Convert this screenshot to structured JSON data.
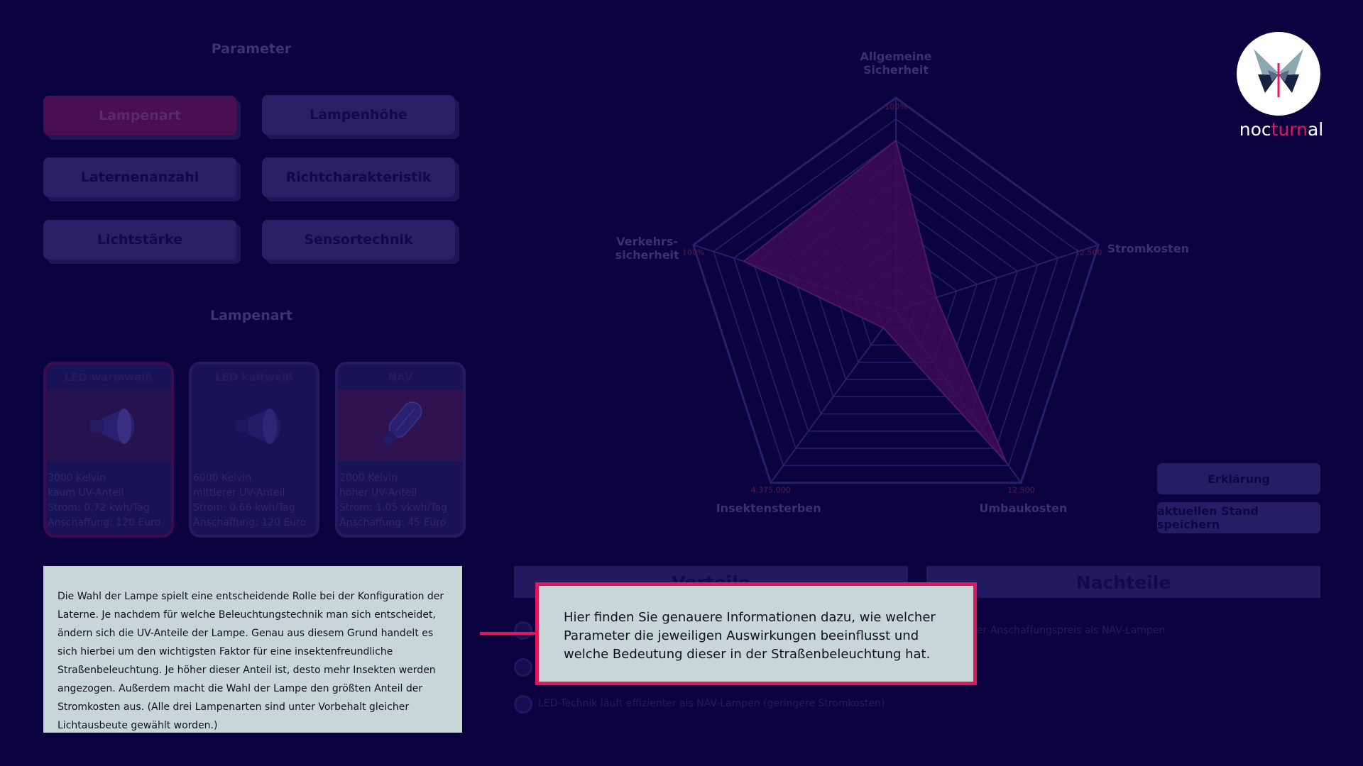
{
  "parameter": {
    "title": "Parameter",
    "buttons": [
      "Lampenart",
      "Lampenhöhe",
      "Laternenanzahl",
      "Richtcharakteristik",
      "Lichtstärke",
      "Sensortechnik"
    ]
  },
  "lampenart": {
    "title": "Lampenart",
    "cards": [
      {
        "title": "LED warmweiß",
        "lines": [
          "3000 Kelvin",
          "kaum UV-Anteil",
          "Strom: 0,72 kwh/Tag",
          "Anschaffung: 120 Euro"
        ]
      },
      {
        "title": "LED kaltweiß",
        "lines": [
          "6000 Kelvin",
          "mittlerer UV-Anteil",
          "Strom: 0,66 kwh/Tag",
          "Anschaffung: 120 Euro"
        ]
      },
      {
        "title": "NAV",
        "lines": [
          "2000 Kelvin",
          "hoher UV-Anteil",
          "Strom: 1,05 vkwh/Tag",
          "Anschaffung: 45 Euro"
        ]
      }
    ]
  },
  "description": "Die Wahl der Lampe spielt eine entscheidende Rolle bei der Konfiguration der Laterne. Je nachdem für welche Beleuchtungstechnik man sich entscheidet, ändern sich die UV-Anteile der Lampe. Genau aus diesem Grund handelt es sich hierbei um den wichtigsten Faktor für eine insektenfreundliche Straßenbeleuchtung. Je höher dieser Anteil ist, desto mehr Insekten werden angezogen. Außerdem macht die Wahl der Lampe den größten Anteil der Stromkosten aus. (Alle drei Lampenarten sind unter Vorbehalt gleicher Lichtausbeute gewählt worden.)",
  "radar": {
    "axes": [
      "Allgemeine Sicherheit",
      "Stromkosten",
      "Umbaukosten",
      "Insektensterben",
      "Verkehrs-sicherheit"
    ],
    "axis_label_lines": [
      [
        "Allgemeine",
        "Sicherheit"
      ],
      [
        "Stromkosten"
      ],
      [
        "Umbaukosten"
      ],
      [
        "Insektensterben"
      ],
      [
        "Verkehrs-",
        "sicherheit"
      ]
    ],
    "max_labels": [
      "100%",
      "12.500",
      "12.500",
      "4.375.000",
      "100%"
    ],
    "values": [
      0.8,
      0.2,
      0.88,
      0.1,
      0.75
    ],
    "colors": {
      "grid": "#26206a",
      "area": "#3e0c56",
      "outline": "#4a1a66",
      "max_label": "#5a1a4e"
    }
  },
  "vorteile": {
    "title": "Vorteile",
    "items": [
      "",
      "",
      "LED-Technik läuft effizienter als NAV-Lampen (geringere Stromkosten)"
    ]
  },
  "nachteile": {
    "title": "Nachteile",
    "items": [
      "er Anschaffungspreis als NAV-Lampen"
    ]
  },
  "side_buttons": {
    "erklaerung": "Erklärung",
    "speichern": "aktuellen Stand speichern"
  },
  "tooltip": "Hier finden Sie genauere Informationen dazu, wie welcher Parameter die jeweiligen Auswirkungen beeinflusst und welche Bedeutung dieser in der Straßenbeleuchtung hat.",
  "logo": {
    "part1": "noc",
    "part2": "turn",
    "part3": "al",
    "accent": "#e2175d"
  }
}
